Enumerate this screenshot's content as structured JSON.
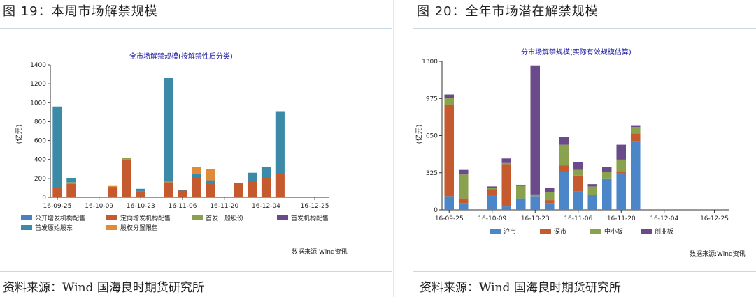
{
  "left": {
    "figure_title": "图 19：本周市场解禁规模",
    "source_line": "资料来源：Wind 国海良时期货研究所",
    "data_source": "数据来源:Wind资讯",
    "unit_label": "(亿元)"
  },
  "right": {
    "figure_title": "图 20：全年市场潜在解禁规模",
    "source_line": "资料来源：Wind 国海良时期货研究所",
    "data_source": "数据来源:Wind资讯",
    "unit_label": "(亿元)"
  },
  "chart_data": [
    {
      "type": "bar",
      "stacked": true,
      "title": "全市场解禁规模(按解禁性质分类)",
      "ylabel": "(亿元)",
      "ylim": [
        0,
        1400
      ],
      "yticks": [
        0,
        200,
        400,
        600,
        800,
        1000,
        1200,
        1400
      ],
      "xtick_labels": [
        "16-09-25",
        "16-10-09",
        "16-10-23",
        "16-11-06",
        "16-11-20",
        "16-12-04",
        "16-12-25"
      ],
      "xtick_positions": [
        0.5,
        3.5,
        6.5,
        9.5,
        12.5,
        15.5,
        19
      ],
      "categories": [
        "1",
        "2",
        "3",
        "4",
        "5",
        "6",
        "7",
        "8",
        "9",
        "10",
        "11",
        "12",
        "13",
        "14",
        "15",
        "16",
        "17",
        "18",
        "19",
        "20"
      ],
      "series": [
        {
          "name": "定向增发机构配售",
          "color": "#c45a2e",
          "values": [
            100,
            140,
            0,
            0,
            110,
            400,
            60,
            0,
            160,
            70,
            210,
            140,
            0,
            150,
            170,
            200,
            250,
            0,
            0,
            0
          ]
        },
        {
          "name": "首发一般股份",
          "color": "#8aa24e",
          "values": [
            0,
            20,
            0,
            0,
            0,
            15,
            0,
            0,
            10,
            0,
            0,
            0,
            0,
            0,
            0,
            0,
            0,
            0,
            0,
            0
          ]
        },
        {
          "name": "首发原始股东",
          "color": "#3a8aa8",
          "values": [
            860,
            40,
            0,
            0,
            0,
            0,
            30,
            0,
            1090,
            10,
            40,
            40,
            0,
            0,
            90,
            120,
            660,
            0,
            0,
            0
          ]
        },
        {
          "name": "股权分置限售",
          "color": "#e08a3a",
          "values": [
            0,
            0,
            0,
            0,
            10,
            0,
            0,
            0,
            0,
            0,
            70,
            120,
            0,
            0,
            0,
            0,
            0,
            0,
            0,
            0
          ]
        },
        {
          "name": "公开增发机构配售",
          "color": "#4a7fc1",
          "values": [
            0,
            0,
            0,
            0,
            0,
            0,
            0,
            0,
            0,
            0,
            0,
            0,
            0,
            0,
            0,
            0,
            0,
            0,
            0,
            0
          ]
        },
        {
          "name": "首发机构配售",
          "color": "#6a4a8a",
          "values": [
            0,
            0,
            0,
            0,
            0,
            0,
            0,
            0,
            0,
            0,
            0,
            0,
            0,
            0,
            0,
            0,
            0,
            0,
            0,
            0
          ]
        }
      ],
      "legend": [
        {
          "name": "公开增发机构配售",
          "color": "#4a7fc1"
        },
        {
          "name": "定向增发机构配售",
          "color": "#c45a2e"
        },
        {
          "name": "首发一般股份",
          "color": "#8aa24e"
        },
        {
          "name": "首发机构配售",
          "color": "#6a4a8a"
        },
        {
          "name": "首发原始股东",
          "color": "#3a8aa8"
        },
        {
          "name": "股权分置限售",
          "color": "#e08a3a"
        }
      ],
      "legend_position": "bottom"
    },
    {
      "type": "bar",
      "stacked": true,
      "title": "分市场解禁规模(实际有效规模估算)",
      "ylabel": "(亿元)",
      "ylim": [
        0,
        1300
      ],
      "yticks": [
        0,
        325,
        650,
        975,
        1300
      ],
      "xtick_labels": [
        "16-09-25",
        "16-10-09",
        "16-10-23",
        "16-11-06",
        "16-11-20",
        "16-12-04",
        "16-12-25"
      ],
      "xtick_positions": [
        0.5,
        3.5,
        6.5,
        9.5,
        12.5,
        15.5,
        19
      ],
      "categories": [
        "1",
        "2",
        "3",
        "4",
        "5",
        "6",
        "7",
        "8",
        "9",
        "10",
        "11",
        "12",
        "13",
        "14",
        "15",
        "16",
        "17",
        "18",
        "19",
        "20"
      ],
      "series": [
        {
          "name": "沪市",
          "color": "#4a86c8",
          "values": [
            120,
            60,
            0,
            130,
            30,
            100,
            120,
            60,
            330,
            160,
            130,
            270,
            320,
            600,
            0,
            0,
            0,
            0,
            0,
            0
          ]
        },
        {
          "name": "深市",
          "color": "#c45a2e",
          "values": [
            800,
            40,
            0,
            50,
            370,
            0,
            0,
            25,
            60,
            140,
            0,
            0,
            20,
            70,
            0,
            0,
            0,
            0,
            0,
            0
          ]
        },
        {
          "name": "中小板",
          "color": "#8aa24e",
          "values": [
            60,
            210,
            0,
            15,
            10,
            110,
            15,
            70,
            180,
            50,
            75,
            65,
            100,
            55,
            0,
            0,
            0,
            0,
            0,
            0
          ]
        },
        {
          "name": "创业板",
          "color": "#6a4a8a",
          "values": [
            30,
            40,
            0,
            10,
            40,
            10,
            1130,
            40,
            70,
            70,
            20,
            40,
            130,
            10,
            0,
            0,
            0,
            0,
            0,
            0
          ]
        }
      ],
      "legend": [
        {
          "name": "沪市",
          "color": "#4a86c8"
        },
        {
          "name": "深市",
          "color": "#c45a2e"
        },
        {
          "name": "中小板",
          "color": "#8aa24e"
        },
        {
          "name": "创业板",
          "color": "#6a4a8a"
        }
      ],
      "legend_position": "bottom"
    }
  ]
}
